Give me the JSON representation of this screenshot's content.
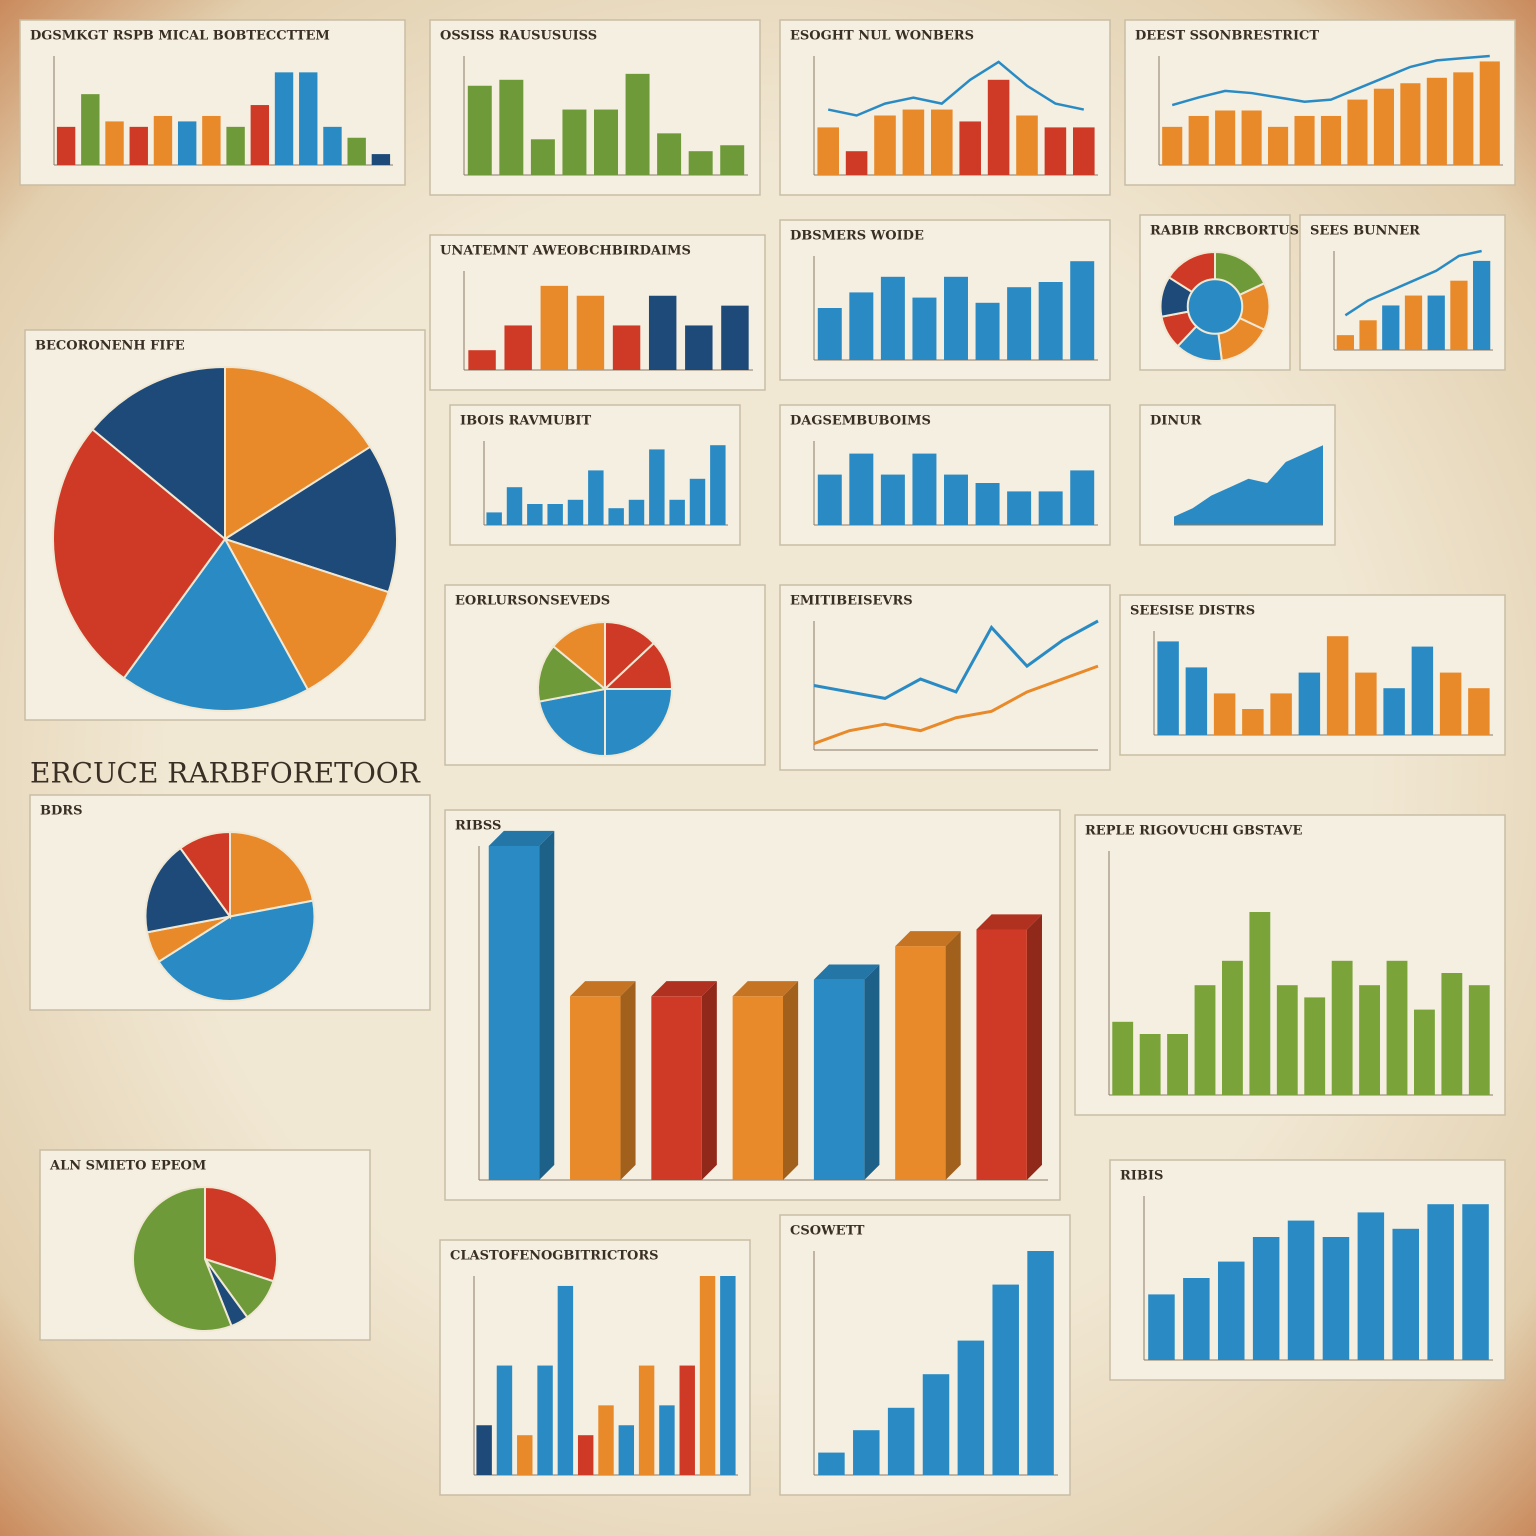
{
  "headline": "ERCUCE RARBFORETOOR",
  "chart_data": [
    {
      "type": "bar",
      "title": "DGSMKGT RSPB MICAL BOBTECCTTEM",
      "ylim": [
        0,
        100
      ],
      "values": [
        35,
        65,
        40,
        35,
        45,
        40,
        45,
        35,
        55,
        85,
        85,
        35,
        25,
        10
      ],
      "colors": [
        "#cf3a26",
        "#6e9a3a",
        "#e8892a",
        "#cf3a26",
        "#e8892a",
        "#2a8bc4",
        "#e8892a",
        "#6e9a3a",
        "#cf3a26",
        "#2a8bc4",
        "#2a8bc4",
        "#2a8bc4",
        "#6e9a3a",
        "#1d4a78"
      ]
    },
    {
      "type": "bar",
      "title": "OSSISS RAUSUSUISS",
      "ylim": [
        0,
        100
      ],
      "color": "#6e9a3a",
      "values": [
        75,
        80,
        30,
        55,
        55,
        85,
        35,
        20,
        25
      ]
    },
    {
      "type": "bar",
      "title": "ESOGHT NUL WONBERS",
      "ylim": [
        0,
        100
      ],
      "values": [
        40,
        20,
        50,
        55,
        55,
        45,
        80,
        50,
        40,
        40
      ],
      "colors": [
        "#e8892a",
        "#cf3a26",
        "#e8892a",
        "#e8892a",
        "#e8892a",
        "#cf3a26",
        "#cf3a26",
        "#e8892a",
        "#cf3a26",
        "#cf3a26"
      ],
      "overlay_color": "#2a8bc4",
      "overlay_values": [
        55,
        50,
        60,
        65,
        60,
        80,
        95,
        75,
        60,
        55
      ]
    },
    {
      "type": "bar",
      "title": "DEEST SSONBRESTRICT",
      "ylim": [
        0,
        100
      ],
      "color": "#e8892a",
      "values": [
        35,
        45,
        50,
        50,
        35,
        45,
        45,
        60,
        70,
        75,
        80,
        85,
        95
      ],
      "overlay_color": "#2a8bc4",
      "overlay_values": [
        55,
        62,
        68,
        66,
        62,
        58,
        60,
        70,
        80,
        90,
        96,
        98,
        100
      ]
    },
    {
      "type": "pie",
      "title": "BECORONENH FIFE",
      "colors": [
        "#e8892a",
        "#1d4a78",
        "#e8892a",
        "#2a8bc4",
        "#cf3a26",
        "#1d4a78"
      ],
      "values": [
        16,
        14,
        12,
        18,
        26,
        14
      ]
    },
    {
      "type": "bar",
      "title": "UNATEMNT AWEOBCHBIRDAIMS",
      "ylim": [
        0,
        100
      ],
      "values": [
        20,
        45,
        85,
        75,
        45,
        75,
        45,
        65
      ],
      "colors": [
        "#cf3a26",
        "#cf3a26",
        "#e8892a",
        "#e8892a",
        "#cf3a26",
        "#1d4a78",
        "#1d4a78",
        "#1d4a78"
      ]
    },
    {
      "type": "bar",
      "title": "DBSMERS WOIDE",
      "ylim": [
        0,
        100
      ],
      "color": "#2a8bc4",
      "values": [
        50,
        65,
        80,
        60,
        80,
        55,
        70,
        75,
        95
      ]
    },
    {
      "type": "pie",
      "title": "RABIB RRCBORTUSNU",
      "donut": true,
      "colors": [
        "#6e9a3a",
        "#e8892a",
        "#e8892a",
        "#2a8bc4",
        "#cf3a26",
        "#1d4a78",
        "#cf3a26"
      ],
      "values": [
        18,
        14,
        16,
        14,
        10,
        12,
        16
      ]
    },
    {
      "type": "bar",
      "title": "SEES BUNNER",
      "ylim": [
        0,
        100
      ],
      "values": [
        15,
        30,
        45,
        55,
        55,
        70,
        90
      ],
      "colors": [
        "#e8892a",
        "#e8892a",
        "#2a8bc4",
        "#e8892a",
        "#2a8bc4",
        "#e8892a",
        "#2a8bc4"
      ],
      "overlay_color": "#2a8bc4",
      "overlay_values": [
        35,
        50,
        60,
        70,
        80,
        95,
        100
      ]
    },
    {
      "type": "bar",
      "title": "IBOIS RAVMUBIT",
      "ylim": [
        0,
        100
      ],
      "color": "#2a8bc4",
      "values": [
        15,
        45,
        25,
        25,
        30,
        65,
        20,
        30,
        90,
        30,
        55,
        95
      ]
    },
    {
      "type": "bar",
      "title": "DAGSEMBUBOIMS",
      "ylim": [
        0,
        100
      ],
      "color": "#2a8bc4",
      "values": [
        60,
        85,
        60,
        85,
        60,
        50,
        40,
        40,
        65
      ]
    },
    {
      "type": "area",
      "title": "DINUR",
      "ylim": [
        0,
        100
      ],
      "color": "#2a8bc4",
      "values": [
        10,
        20,
        35,
        45,
        55,
        50,
        75,
        85,
        95
      ]
    },
    {
      "type": "pie",
      "title": "EORLURSONSEVEDS",
      "colors": [
        "#cf3a26",
        "#cf3a26",
        "#2a8bc4",
        "#2a8bc4",
        "#6e9a3a",
        "#e8892a"
      ],
      "values": [
        13,
        12,
        25,
        22,
        14,
        14
      ]
    },
    {
      "type": "line",
      "title": "EMITIBEISEVRS",
      "ylim": [
        0,
        100
      ],
      "series": [
        {
          "color": "#2a8bc4",
          "values": [
            50,
            45,
            40,
            55,
            45,
            95,
            65,
            85,
            100
          ]
        },
        {
          "color": "#e8892a",
          "values": [
            5,
            15,
            20,
            15,
            25,
            30,
            45,
            55,
            65
          ]
        }
      ]
    },
    {
      "type": "bar",
      "title": "SEESISE DISTRS",
      "ylim": [
        0,
        100
      ],
      "values": [
        90,
        65,
        40,
        25,
        40,
        60,
        95,
        60,
        45,
        85,
        60,
        45
      ],
      "colors": [
        "#2a8bc4",
        "#2a8bc4",
        "#e8892a",
        "#e8892a",
        "#e8892a",
        "#2a8bc4",
        "#e8892a",
        "#e8892a",
        "#2a8bc4",
        "#2a8bc4",
        "#e8892a",
        "#e8892a"
      ]
    },
    {
      "type": "pie",
      "title": "BDRS",
      "colors": [
        "#e8892a",
        "#2a8bc4",
        "#e8892a",
        "#1d4a78",
        "#cf3a26"
      ],
      "values": [
        22,
        44,
        6,
        18,
        10
      ]
    },
    {
      "type": "bar3d",
      "title": "RIBSS",
      "ylim": [
        0,
        100
      ],
      "values": [
        100,
        55,
        55,
        55,
        60,
        70,
        75
      ],
      "colors": [
        "#2a8bc4",
        "#e8892a",
        "#cf3a26",
        "#e8892a",
        "#2a8bc4",
        "#e8892a",
        "#cf3a26"
      ]
    },
    {
      "type": "bar",
      "title": "REPLE RIGOVUCHI GBSTAVE",
      "ylim": [
        0,
        100
      ],
      "color": "#7aa33a",
      "values": [
        30,
        25,
        25,
        45,
        55,
        75,
        45,
        40,
        55,
        45,
        55,
        35,
        50,
        45
      ]
    },
    {
      "type": "pie",
      "title": "ALN SMIETO EPEOM",
      "colors": [
        "#cf3a26",
        "#6e9a3a",
        "#1d4a78",
        "#6e9a3a"
      ],
      "values": [
        30,
        10,
        4,
        56
      ]
    },
    {
      "type": "bar",
      "title": "CLASTOFENOGBITRICTORS",
      "ylim": [
        0,
        100
      ],
      "values": [
        25,
        55,
        20,
        55,
        95,
        20,
        35,
        25,
        55,
        35,
        55,
        100,
        100
      ],
      "colors": [
        "#1d4a78",
        "#2a8bc4",
        "#e8892a",
        "#2a8bc4",
        "#2a8bc4",
        "#cf3a26",
        "#e8892a",
        "#2a8bc4",
        "#e8892a",
        "#2a8bc4",
        "#cf3a26",
        "#e8892a",
        "#2a8bc4"
      ]
    },
    {
      "type": "bar",
      "title": "CSOWETT",
      "ylim": [
        0,
        100
      ],
      "color": "#2a8bc4",
      "values": [
        10,
        20,
        30,
        45,
        60,
        85,
        100
      ]
    },
    {
      "type": "bar",
      "title": "RIBIS",
      "ylim": [
        0,
        100
      ],
      "color": "#2a8bc4",
      "values": [
        40,
        50,
        60,
        75,
        85,
        75,
        90,
        80,
        95,
        95
      ]
    }
  ]
}
